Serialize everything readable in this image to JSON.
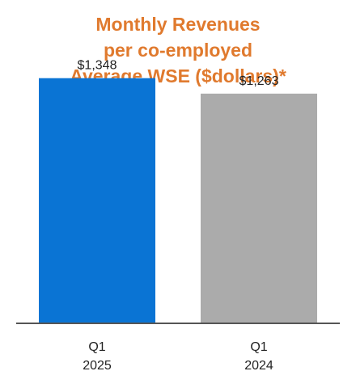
{
  "chart_data": {
    "type": "bar",
    "title_lines": [
      "Monthly Revenues",
      "per co-employed",
      "Average WSE ($dollars)*"
    ],
    "categories": [
      [
        "Q1",
        "2025"
      ],
      [
        "Q1",
        "2024"
      ]
    ],
    "values": [
      1348,
      1263
    ],
    "value_labels": [
      "$1,348",
      "$1,263"
    ],
    "bar_colors": [
      "#0A74D4",
      "#ABABAB"
    ],
    "title_color": "#E07A2E",
    "axis_color": "#555555",
    "ylim": [
      0,
      1600
    ],
    "grid": false,
    "legend": "none"
  }
}
